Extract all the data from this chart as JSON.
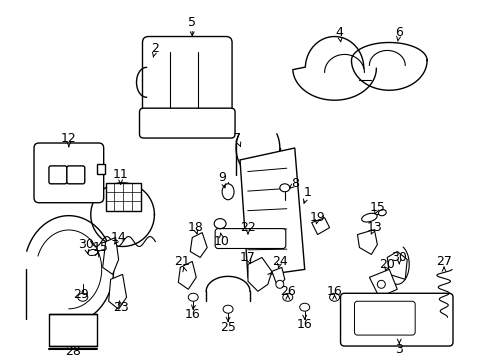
{
  "bg_color": "#ffffff",
  "line_color": "#000000",
  "figsize": [
    4.89,
    3.6
  ],
  "dpi": 100,
  "border_color": "#cccccc"
}
